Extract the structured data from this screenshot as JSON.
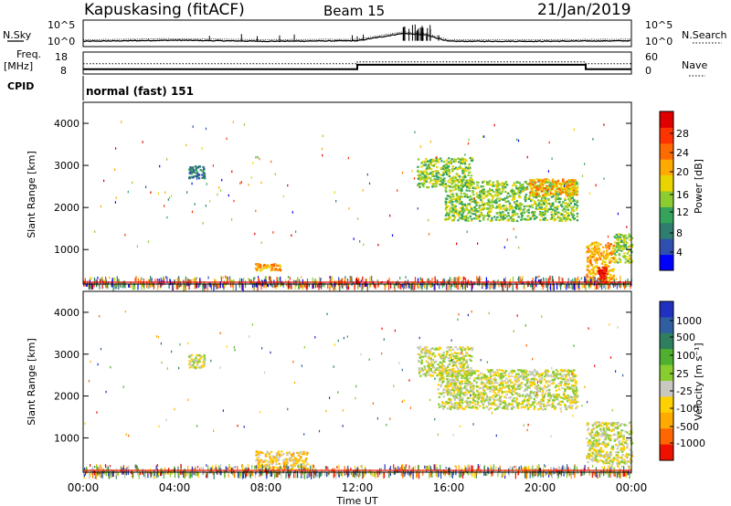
{
  "header": {
    "station": "Kapuskasing (fitACF)",
    "beam": "Beam 15",
    "date": "21/Jan/2019"
  },
  "noise_panel": {
    "left_label": "N.Sky",
    "left_ticks": [
      "10^5",
      "10^0"
    ],
    "right_ticks": [
      "10^5",
      "10^0"
    ],
    "right_label": "N.Search"
  },
  "freq_panel": {
    "left_label_1": "Freq.",
    "left_label_2": "[MHz]",
    "left_ticks": [
      "18",
      "8"
    ],
    "right_ticks": [
      "60",
      "0"
    ],
    "right_label": "Nave"
  },
  "cpid": {
    "label": "CPID",
    "value": "normal (fast) 151"
  },
  "power_panel": {
    "ylabel": "Slant Range [km]",
    "yticks": [
      "4000",
      "3000",
      "2000",
      "1000"
    ],
    "colorbar_label": "Power [dB]",
    "colorbar_ticks": [
      "28",
      "24",
      "20",
      "16",
      "12",
      "8",
      "4"
    ],
    "colors": [
      "#0000ff",
      "#3050b0",
      "#2f7d6e",
      "#35a35a",
      "#8ccc30",
      "#e9d400",
      "#ffaa00",
      "#ff6a00",
      "#ff3300",
      "#e00000"
    ]
  },
  "velocity_panel": {
    "ylabel": "Slant Range [km]",
    "yticks": [
      "4000",
      "3000",
      "2000",
      "1000"
    ],
    "colorbar_label": "Velocity [m s⁻¹]",
    "colorbar_ticks": [
      "1000",
      "500",
      "100",
      "25",
      "-25",
      "-100",
      "-500",
      "-1000"
    ],
    "colors": [
      "#2030c0",
      "#2f5fa0",
      "#2f7f5f",
      "#4fb030",
      "#88cc30",
      "#c8c8c0",
      "#ffd000",
      "#ffaa00",
      "#ff6600",
      "#ee1100"
    ]
  },
  "xaxis": {
    "ticks": [
      "00:00",
      "04:00",
      "08:00",
      "12:00",
      "16:00",
      "20:00",
      "00:00"
    ],
    "label": "Time UT"
  },
  "chart_data": [
    {
      "type": "line",
      "name": "noise",
      "x_hours": [
        0,
        4,
        8,
        12,
        14,
        15,
        16,
        20,
        24
      ],
      "y_log": [
        1.0,
        1.2,
        1.0,
        1.1,
        2.5,
        2.2,
        1.0,
        1.0,
        1.1
      ],
      "ylim": [
        0,
        5
      ]
    },
    {
      "type": "line",
      "name": "frequency",
      "x_hours": [
        0,
        12,
        12,
        22,
        22,
        24
      ],
      "frequency_mhz": [
        10.2,
        10.2,
        12.2,
        12.2,
        10.2,
        10.2
      ],
      "nave": [
        28,
        28,
        33,
        33,
        28,
        28
      ],
      "ylim": [
        8,
        18
      ]
    },
    {
      "type": "heatmap",
      "name": "power",
      "xlim": [
        0,
        24
      ],
      "ylim": [
        180,
        4500
      ],
      "features": [
        {
          "x": [
            4.6,
            5.3
          ],
          "y": [
            2700,
            3000
          ],
          "level": 2
        },
        {
          "x": [
            7.5,
            8.6
          ],
          "y": [
            520,
            680
          ],
          "level": 6
        },
        {
          "x": [
            14.6,
            17.0
          ],
          "y": [
            2500,
            3200
          ],
          "level": 4
        },
        {
          "x": [
            15.8,
            21.6
          ],
          "y": [
            1700,
            2650
          ],
          "level": 4
        },
        {
          "x": [
            19.5,
            21.6
          ],
          "y": [
            2300,
            2700
          ],
          "level": 6
        },
        {
          "x": [
            22.0,
            23.2
          ],
          "y": [
            180,
            1200
          ],
          "level": 6
        },
        {
          "x": [
            22.5,
            22.9
          ],
          "y": [
            200,
            600
          ],
          "level": 9
        },
        {
          "x": [
            23.2,
            24.0
          ],
          "y": [
            700,
            1400
          ],
          "level": 4
        },
        {
          "x": [
            0,
            24
          ],
          "y": [
            180,
            380
          ],
          "level": 1
        }
      ]
    },
    {
      "type": "heatmap",
      "name": "velocity",
      "xlim": [
        0,
        24
      ],
      "ylim": [
        180,
        4500
      ],
      "features": [
        {
          "x": [
            4.6,
            5.3
          ],
          "y": [
            2700,
            3000
          ],
          "level": 5
        },
        {
          "x": [
            7.5,
            9.8
          ],
          "y": [
            250,
            700
          ],
          "level": 6
        },
        {
          "x": [
            14.6,
            17.0
          ],
          "y": [
            2500,
            3200
          ],
          "level": 5
        },
        {
          "x": [
            15.5,
            21.6
          ],
          "y": [
            1700,
            2650
          ],
          "level": 5
        },
        {
          "x": [
            22.0,
            24.0
          ],
          "y": [
            400,
            1400
          ],
          "level": 5
        },
        {
          "x": [
            0,
            24
          ],
          "y": [
            180,
            380
          ],
          "level": 6
        }
      ]
    }
  ]
}
